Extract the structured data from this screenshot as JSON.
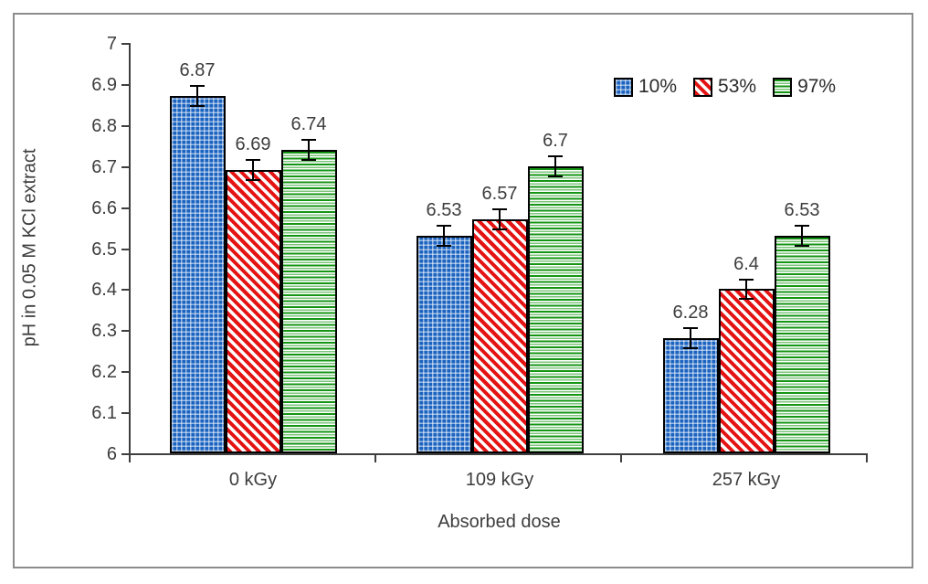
{
  "chart_data": {
    "type": "bar",
    "title": "",
    "xlabel": "Absorbed dose",
    "ylabel": "pH in 0.05 M KCl extract",
    "categories": [
      "0 kGy",
      "109 kGy",
      "257 kGy"
    ],
    "series": [
      {
        "name": "10%",
        "color": "#1b63c0",
        "pattern": "dotted-grid",
        "values": [
          6.87,
          6.53,
          6.28
        ]
      },
      {
        "name": "53%",
        "color": "#e51414",
        "pattern": "diagonal-stripes",
        "values": [
          6.69,
          6.57,
          6.4
        ]
      },
      {
        "name": "97%",
        "color": "#149614",
        "pattern": "horizontal-stripes",
        "values": [
          6.74,
          6.7,
          6.53
        ]
      }
    ],
    "value_labels": [
      [
        "6.87",
        "6.53",
        "6.28"
      ],
      [
        "6.69",
        "6.57",
        "6.4"
      ],
      [
        "6.74",
        "6.7",
        "6.53"
      ]
    ],
    "ylim": [
      6,
      7
    ],
    "y_ticks": [
      "6",
      "6.1",
      "6.2",
      "6.3",
      "6.4",
      "6.5",
      "6.6",
      "6.7",
      "6.8",
      "6.9",
      "7"
    ],
    "error_bar_estimate": 0.022,
    "grid": false,
    "legend_position": "top-right",
    "colors": {
      "bar_outline": "#000000",
      "error_bar": "#000000",
      "axis": "#3f3f3f",
      "text": "#3d3d3d",
      "figure_border": "#8c8c8c",
      "background": "#ffffff"
    }
  }
}
